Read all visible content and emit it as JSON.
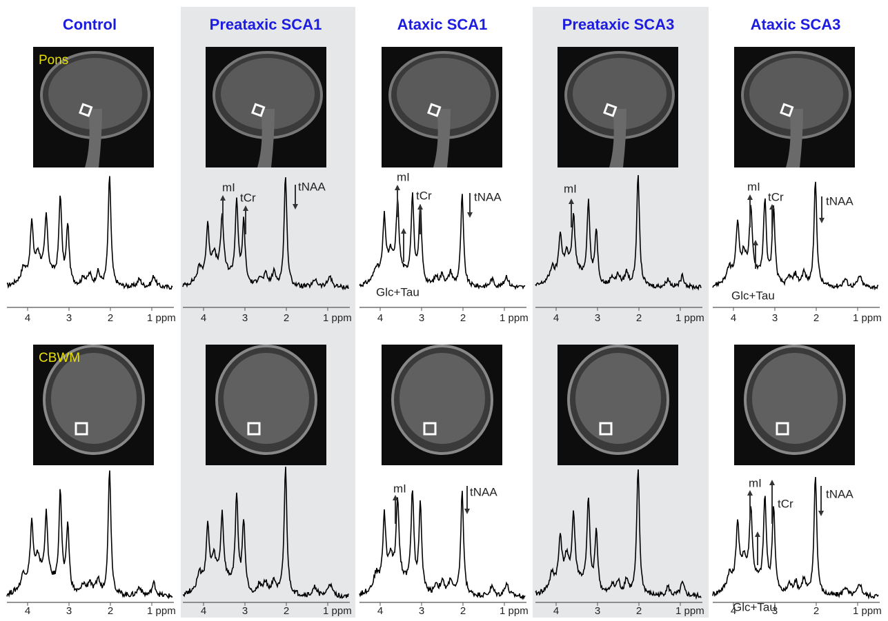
{
  "regions": {
    "pons": "Pons",
    "cbwm": "CBWM"
  },
  "columns": [
    {
      "title": "Control",
      "pons": {
        "ticks": [
          "4",
          "3",
          "2",
          "1 ppm"
        ],
        "annotations": []
      },
      "cbwm": {
        "ticks": [
          "4",
          "3",
          "2",
          "1 ppm"
        ],
        "annotations": []
      }
    },
    {
      "title": "Preataxic SCA1",
      "pons": {
        "ticks": [
          "4",
          "3",
          "2",
          "1 ppm"
        ],
        "annotations": [
          "mI",
          "tCr",
          "tNAA"
        ]
      },
      "cbwm": {
        "ticks": [
          "4",
          "3",
          "2",
          "1 ppm"
        ],
        "annotations": []
      }
    },
    {
      "title": "Ataxic SCA1",
      "pons": {
        "ticks": [
          "4",
          "3",
          "2",
          "1 ppm"
        ],
        "annotations": [
          "mI",
          "tCr",
          "tNAA",
          "Glc+Tau"
        ]
      },
      "cbwm": {
        "ticks": [
          "4",
          "3",
          "2",
          "1 ppm"
        ],
        "annotations": [
          "mI",
          "tNAA"
        ]
      }
    },
    {
      "title": "Preataxic SCA3",
      "pons": {
        "ticks": [
          "4",
          "3",
          "2",
          "1 ppm"
        ],
        "annotations": [
          "mI"
        ]
      },
      "cbwm": {
        "ticks": [
          "4",
          "3",
          "2",
          "1 ppm"
        ],
        "annotations": []
      }
    },
    {
      "title": "Ataxic SCA3",
      "pons": {
        "ticks": [
          "4",
          "3",
          "2",
          "1 ppm"
        ],
        "annotations": [
          "mI",
          "tCr",
          "tNAA",
          "Glc+Tau"
        ]
      },
      "cbwm": {
        "ticks": [
          "4",
          "3",
          "2",
          "1 ppm"
        ],
        "annotations": [
          "mI",
          "tCr",
          "tNAA",
          "Glc+Tau"
        ]
      }
    }
  ]
}
